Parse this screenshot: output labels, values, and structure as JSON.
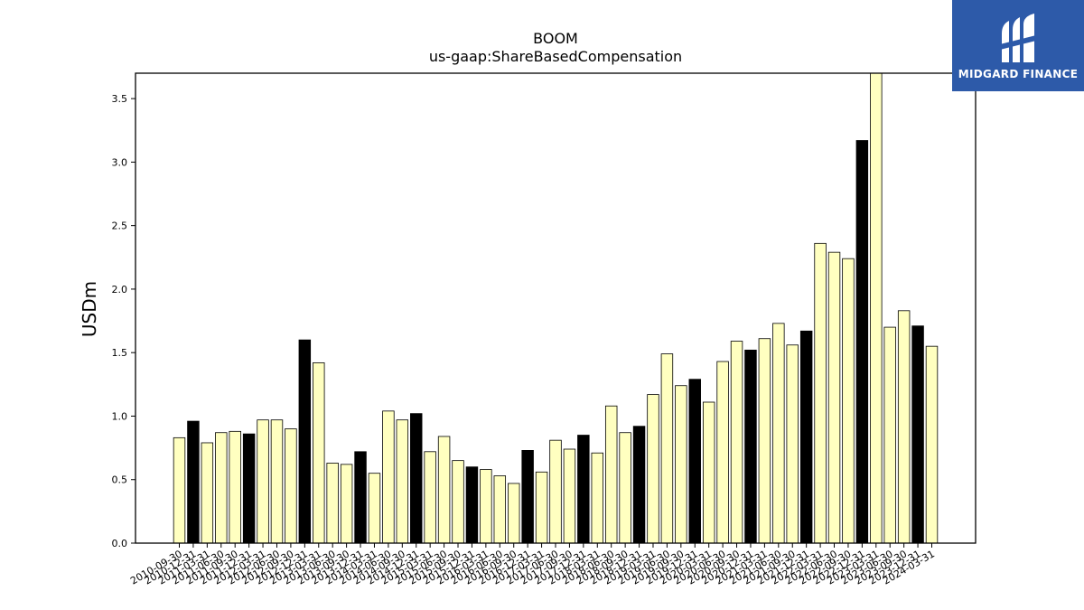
{
  "logo": {
    "text": "MIDGARD FINANCE"
  },
  "chart_data": {
    "type": "bar",
    "title": "BOOM",
    "subtitle": "us-gaap:ShareBasedCompensation",
    "xlabel": "",
    "ylabel": "USDm",
    "ylim": [
      0,
      3.7
    ],
    "yticks": [
      0.0,
      0.5,
      1.0,
      1.5,
      2.0,
      2.5,
      3.0,
      3.5
    ],
    "ytick_labels": [
      "0.0",
      "0.5",
      "1.0",
      "1.5",
      "2.0",
      "2.5",
      "3.0",
      "3.5"
    ],
    "grid": false,
    "legend": "none",
    "colors": {
      "quarter": "#ffffc0",
      "fiscal_year_end": "#000000",
      "edge": "#000000"
    },
    "categories": [
      "2010-09-30",
      "2010-12-31",
      "2011-03-31",
      "2011-06-30",
      "2011-09-30",
      "2011-12-31",
      "2012-03-31",
      "2012-06-30",
      "2012-09-30",
      "2012-12-31",
      "2013-03-31",
      "2013-06-30",
      "2013-09-30",
      "2013-12-31",
      "2014-03-31",
      "2014-06-30",
      "2014-09-30",
      "2014-12-31",
      "2015-03-31",
      "2015-06-30",
      "2015-09-30",
      "2015-12-31",
      "2016-03-31",
      "2016-06-30",
      "2016-09-30",
      "2016-12-31",
      "2017-03-31",
      "2017-06-30",
      "2017-09-30",
      "2017-12-31",
      "2018-03-31",
      "2018-06-30",
      "2018-09-30",
      "2018-12-31",
      "2019-03-31",
      "2019-06-30",
      "2019-09-30",
      "2019-12-31",
      "2020-03-31",
      "2020-06-30",
      "2020-09-30",
      "2020-12-31",
      "2021-03-31",
      "2021-06-30",
      "2021-09-30",
      "2021-12-31",
      "2022-03-31",
      "2022-06-30",
      "2022-09-30",
      "2022-12-31",
      "2023-03-31",
      "2023-06-30",
      "2023-09-30",
      "2023-12-31",
      "2024-03-31"
    ],
    "values": [
      0.83,
      0.96,
      0.79,
      0.87,
      0.88,
      0.86,
      0.97,
      0.97,
      0.9,
      1.6,
      1.42,
      0.63,
      0.62,
      0.72,
      0.55,
      1.04,
      0.97,
      1.02,
      0.72,
      0.84,
      0.65,
      0.6,
      0.58,
      0.53,
      0.47,
      0.73,
      0.56,
      0.81,
      0.74,
      0.85,
      0.71,
      1.08,
      0.87,
      0.92,
      1.17,
      1.49,
      1.24,
      1.29,
      1.11,
      1.43,
      1.59,
      1.52,
      1.61,
      1.73,
      1.56,
      1.67,
      2.36,
      2.29,
      2.24,
      3.17,
      3.7,
      1.7,
      1.83,
      1.71,
      1.55
    ],
    "fiscal_year_end": [
      false,
      true,
      false,
      false,
      false,
      true,
      false,
      false,
      false,
      true,
      false,
      false,
      false,
      true,
      false,
      false,
      false,
      true,
      false,
      false,
      false,
      true,
      false,
      false,
      false,
      true,
      false,
      false,
      false,
      true,
      false,
      false,
      false,
      true,
      false,
      false,
      false,
      true,
      false,
      false,
      false,
      true,
      false,
      false,
      false,
      true,
      false,
      false,
      false,
      true,
      false,
      false,
      false,
      true,
      false
    ]
  }
}
